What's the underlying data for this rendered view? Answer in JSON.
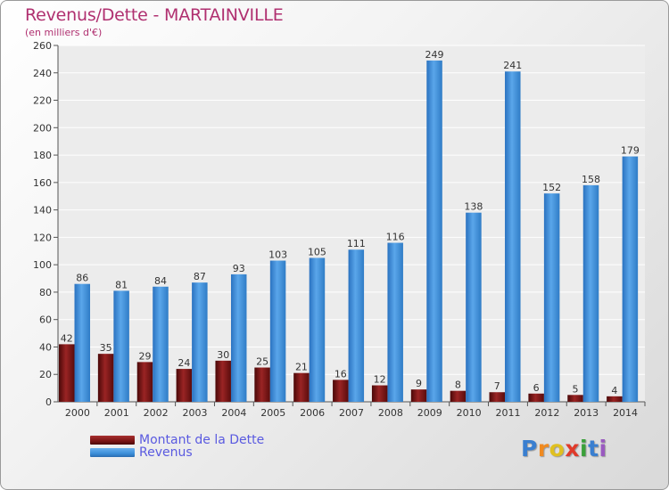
{
  "title": "Revenus/Dette - MARTAINVILLE",
  "subtitle": "(en milliers d'€)",
  "colors": {
    "title": "#b03070",
    "debt": "#7a1414",
    "revenue": "#3b8fd9",
    "legend_text": "#5a5ae0"
  },
  "chart_data": {
    "type": "bar",
    "categories": [
      "2000",
      "2001",
      "2002",
      "2003",
      "2004",
      "2005",
      "2006",
      "2007",
      "2008",
      "2009",
      "2010",
      "2011",
      "2012",
      "2013",
      "2014"
    ],
    "series": [
      {
        "name": "Montant de la Dette",
        "values": [
          42,
          35,
          29,
          24,
          30,
          25,
          21,
          16,
          12,
          9,
          8,
          7,
          6,
          5,
          4
        ]
      },
      {
        "name": "Revenus",
        "values": [
          86,
          81,
          84,
          87,
          93,
          103,
          105,
          111,
          116,
          249,
          138,
          241,
          152,
          158,
          179
        ]
      }
    ],
    "ylim": [
      0,
      260
    ],
    "yticks": [
      0,
      20,
      40,
      60,
      80,
      100,
      120,
      140,
      160,
      180,
      200,
      220,
      240,
      260
    ],
    "grid": true,
    "legend_position": "bottom-left"
  },
  "legend": [
    {
      "label": "Montant de la Dette",
      "color": "debt"
    },
    {
      "label": "Revenus",
      "color": "revenue"
    }
  ],
  "logo": {
    "letters": [
      "P",
      "r",
      "o",
      "x",
      "i",
      "t",
      "i"
    ],
    "colors": [
      "#3a7fd0",
      "#f08a20",
      "#e0c020",
      "#e03a2a",
      "#3aa03a",
      "#3a7fd0",
      "#9a5ac0"
    ]
  }
}
